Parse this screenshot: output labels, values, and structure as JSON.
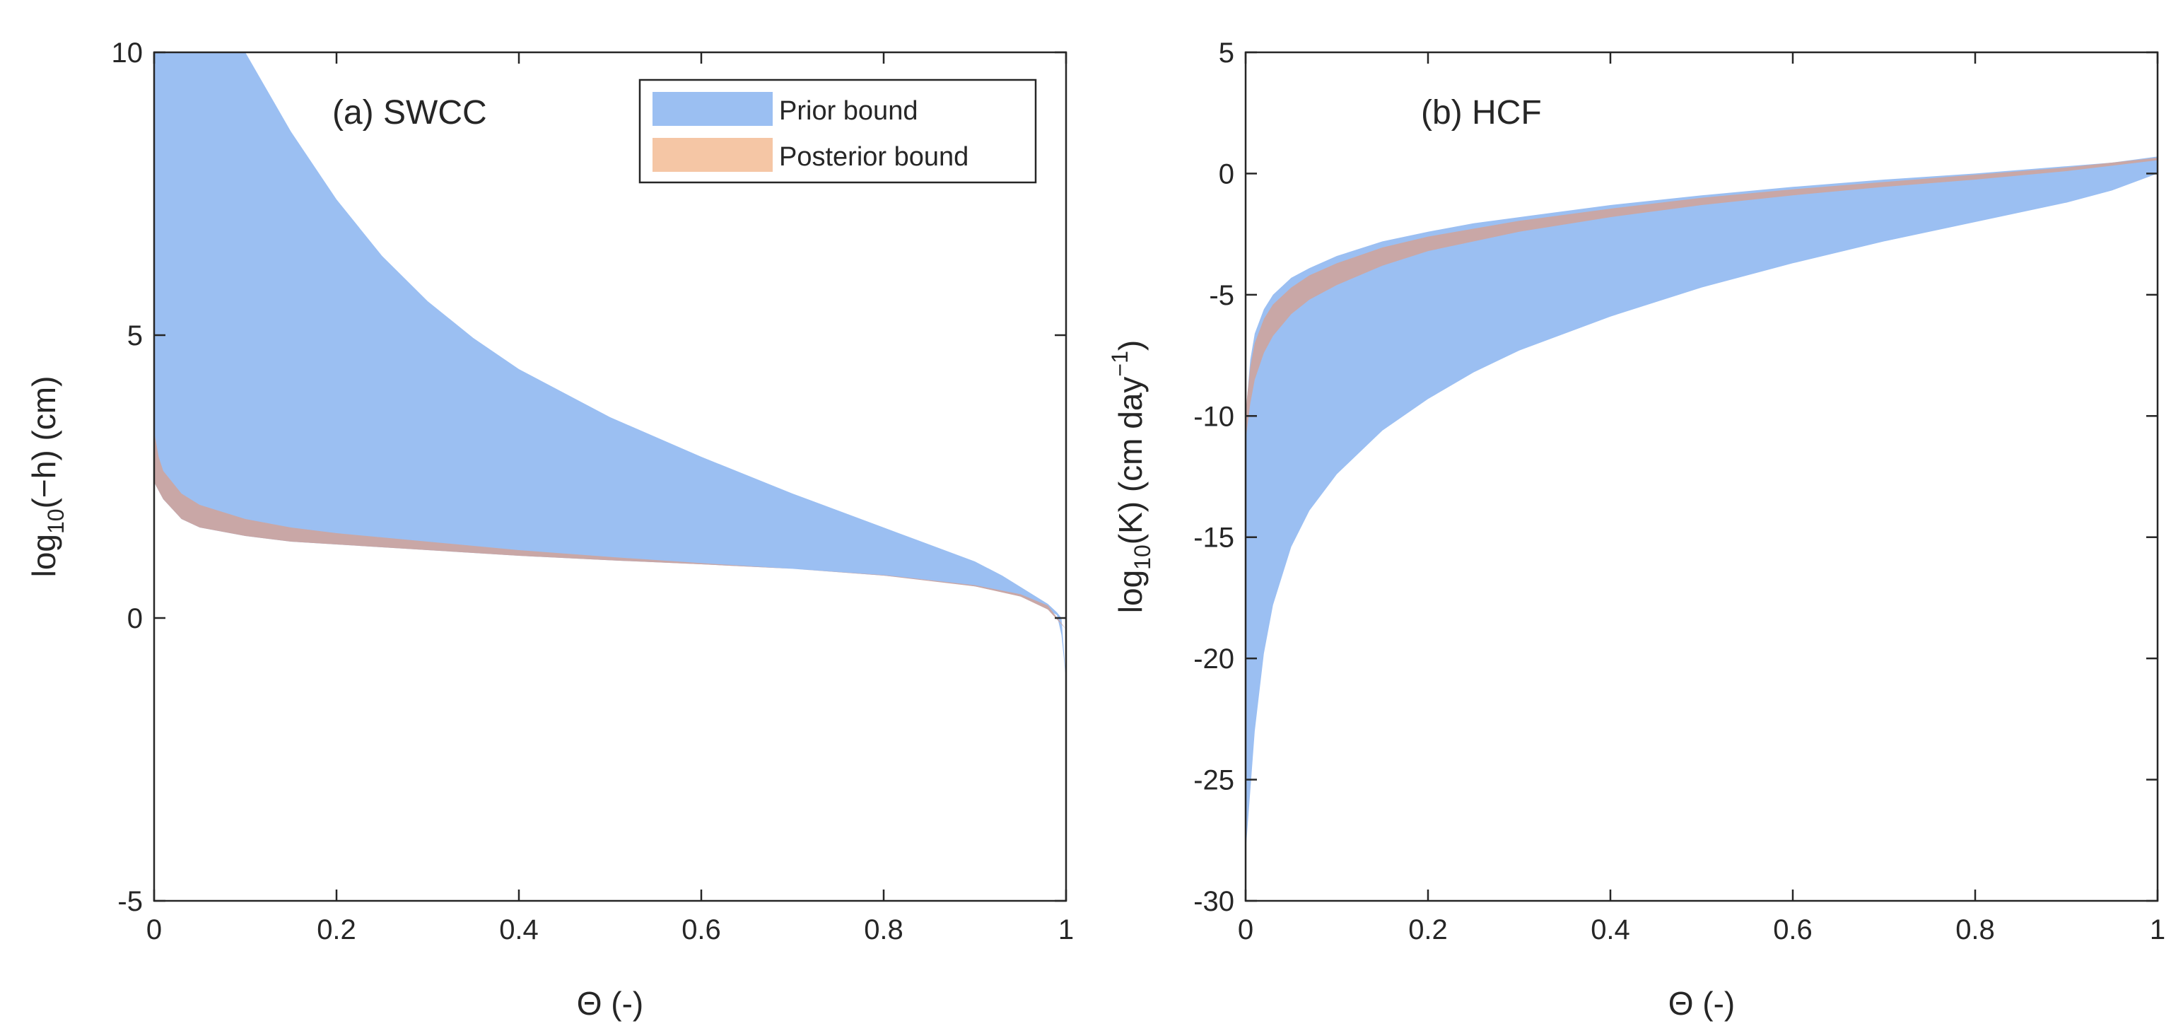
{
  "chart_data": [
    {
      "type": "area",
      "title": "(a) SWCC",
      "xlabel": "Θ (-)",
      "ylabel": "log10(−h) (cm)",
      "ylabel_parts": {
        "base": "log",
        "sub": "10",
        "rest": "(−h) (cm)"
      },
      "xlim": [
        0,
        1
      ],
      "ylim": [
        -5,
        10
      ],
      "xticks": [
        0,
        0.2,
        0.4,
        0.6,
        0.8,
        1
      ],
      "xtick_labels": [
        "0",
        "0.2",
        "0.4",
        "0.6",
        "0.8",
        "1"
      ],
      "yticks": [
        -5,
        0,
        5,
        10
      ],
      "ytick_labels": [
        "-5",
        "0",
        "5",
        "10"
      ],
      "legend": {
        "position": "top-right",
        "entries": [
          {
            "label": "Prior bound",
            "color": "#9bbff2"
          },
          {
            "label": "Posterior bound",
            "color": "#f5c6a5"
          }
        ]
      },
      "series": [
        {
          "name": "Prior bound",
          "color": "#9bbff2",
          "x": [
            0.0,
            0.005,
            0.01,
            0.03,
            0.05,
            0.1,
            0.15,
            0.2,
            0.25,
            0.3,
            0.35,
            0.4,
            0.5,
            0.6,
            0.7,
            0.8,
            0.85,
            0.9,
            0.93,
            0.95,
            0.97,
            0.98,
            0.99,
            0.995,
            1.0
          ],
          "upper": [
            10,
            10,
            10,
            10,
            10,
            10,
            8.6,
            7.4,
            6.4,
            5.6,
            4.95,
            4.4,
            3.55,
            2.85,
            2.2,
            1.6,
            1.3,
            1.0,
            0.75,
            0.55,
            0.35,
            0.25,
            0.1,
            0.0,
            -1.1
          ],
          "lower": [
            2.4,
            2.25,
            2.1,
            1.75,
            1.6,
            1.45,
            1.35,
            1.3,
            1.25,
            1.2,
            1.15,
            1.1,
            1.02,
            0.95,
            0.87,
            0.75,
            0.67,
            0.56,
            0.47,
            0.38,
            0.25,
            0.15,
            0.05,
            -0.3,
            -1.1
          ]
        },
        {
          "name": "Posterior bound",
          "color": "#c9a7a6",
          "x": [
            0.0,
            0.005,
            0.01,
            0.03,
            0.05,
            0.1,
            0.15,
            0.2,
            0.3,
            0.4,
            0.5,
            0.6,
            0.7,
            0.8,
            0.9,
            0.95,
            0.98,
            1.0
          ],
          "upper": [
            3.3,
            2.85,
            2.6,
            2.2,
            2.0,
            1.75,
            1.6,
            1.5,
            1.35,
            1.2,
            1.08,
            0.97,
            0.87,
            0.76,
            0.58,
            0.42,
            0.22,
            -0.2
          ],
          "lower": [
            2.4,
            2.25,
            2.1,
            1.75,
            1.6,
            1.45,
            1.35,
            1.3,
            1.2,
            1.1,
            1.02,
            0.95,
            0.87,
            0.75,
            0.56,
            0.38,
            0.15,
            -0.2
          ]
        }
      ]
    },
    {
      "type": "area",
      "title": "(b) HCF",
      "xlabel": "Θ (-)",
      "ylabel": "log10(K) (cm day−1)",
      "ylabel_parts": {
        "base": "log",
        "sub": "10",
        "rest": "(K) (cm day",
        "sup": "−1",
        "close": ")"
      },
      "xlim": [
        0,
        1
      ],
      "ylim": [
        -30,
        5
      ],
      "xticks": [
        0,
        0.2,
        0.4,
        0.6,
        0.8,
        1
      ],
      "xtick_labels": [
        "0",
        "0.2",
        "0.4",
        "0.6",
        "0.8",
        "1"
      ],
      "yticks": [
        -30,
        -25,
        -20,
        -15,
        -10,
        -5,
        0,
        5
      ],
      "ytick_labels": [
        "-30",
        "-25",
        "-20",
        "-15",
        "-10",
        "-5",
        "0",
        "5"
      ],
      "series": [
        {
          "name": "Prior bound",
          "color": "#9bbff2",
          "x": [
            0.0,
            0.005,
            0.01,
            0.02,
            0.03,
            0.05,
            0.07,
            0.1,
            0.15,
            0.2,
            0.25,
            0.3,
            0.4,
            0.5,
            0.6,
            0.7,
            0.8,
            0.9,
            0.95,
            1.0
          ],
          "upper": [
            -10.0,
            -7.7,
            -6.6,
            -5.6,
            -5.0,
            -4.3,
            -3.9,
            -3.4,
            -2.8,
            -2.4,
            -2.05,
            -1.8,
            -1.3,
            -0.9,
            -0.55,
            -0.25,
            0.0,
            0.3,
            0.45,
            0.7
          ],
          "lower": [
            -28.0,
            -25.5,
            -23.0,
            -19.8,
            -17.8,
            -15.4,
            -13.9,
            -12.4,
            -10.6,
            -9.3,
            -8.2,
            -7.3,
            -5.9,
            -4.7,
            -3.7,
            -2.8,
            -2.0,
            -1.2,
            -0.7,
            0.0
          ]
        },
        {
          "name": "Posterior bound",
          "color": "#c9a7a6",
          "x": [
            0.0,
            0.005,
            0.01,
            0.02,
            0.03,
            0.05,
            0.07,
            0.1,
            0.15,
            0.2,
            0.3,
            0.4,
            0.5,
            0.6,
            0.7,
            0.8,
            0.9,
            1.0
          ],
          "upper": [
            -9.8,
            -8.0,
            -7.0,
            -6.0,
            -5.4,
            -4.7,
            -4.2,
            -3.7,
            -3.05,
            -2.6,
            -1.95,
            -1.45,
            -1.0,
            -0.65,
            -0.35,
            -0.05,
            0.25,
            0.65
          ],
          "lower": [
            -11.0,
            -9.5,
            -8.5,
            -7.4,
            -6.7,
            -5.8,
            -5.2,
            -4.6,
            -3.8,
            -3.2,
            -2.4,
            -1.8,
            -1.3,
            -0.9,
            -0.55,
            -0.25,
            0.1,
            0.55
          ]
        }
      ]
    }
  ]
}
